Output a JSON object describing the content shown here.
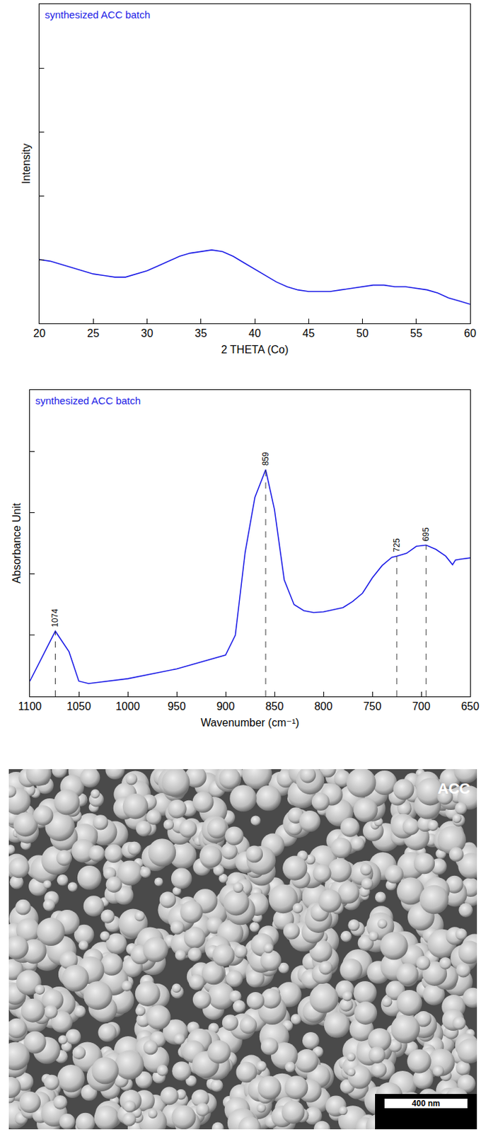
{
  "chart_data": [
    {
      "type": "line",
      "annotation": "synthesized ACC batch",
      "x_label": "2 THETA (Co)",
      "y_label": "Intensity",
      "x": [
        20,
        21,
        22,
        23,
        24,
        25,
        26,
        27,
        28,
        29,
        30,
        31,
        32,
        33,
        34,
        35,
        36,
        37,
        38,
        39,
        40,
        41,
        42,
        43,
        44,
        45,
        46,
        47,
        48,
        49,
        50,
        51,
        52,
        53,
        54,
        55,
        56,
        57,
        58,
        59,
        60
      ],
      "values": [
        20,
        19.5,
        18.5,
        17.5,
        16.5,
        15.5,
        15,
        14.5,
        14.5,
        15.5,
        16.5,
        18,
        19.5,
        21,
        22,
        22.5,
        23,
        22.5,
        21,
        19,
        17,
        15,
        13,
        11.5,
        10.5,
        10,
        10,
        10,
        10.5,
        11,
        11.5,
        12,
        12,
        11.5,
        11.5,
        11,
        10.5,
        9.5,
        8,
        7,
        6
      ],
      "color": "#1a1ae6",
      "xlim": [
        20,
        60
      ],
      "xticks": [
        20,
        25,
        30,
        35,
        40,
        45,
        50,
        55,
        60
      ],
      "ylim": [
        0,
        100
      ],
      "yticks": [
        0,
        20,
        40,
        60,
        80,
        100
      ],
      "tick_labels": "x",
      "grid": false
    },
    {
      "type": "line",
      "annotation": "synthesized ACC batch",
      "x_label": "Wavenumber (cm⁻¹)",
      "y_label": "Absorbance Unit",
      "x": [
        1100,
        1074,
        1060,
        1050,
        1040,
        1000,
        950,
        900,
        890,
        880,
        870,
        859,
        850,
        840,
        830,
        820,
        810,
        800,
        780,
        770,
        760,
        750,
        740,
        730,
        725,
        715,
        705,
        695,
        685,
        675,
        668,
        665,
        660,
        650
      ],
      "values": [
        5,
        21.3,
        14.6,
        5,
        4.2,
        5.8,
        9,
        13.5,
        20,
        47,
        65,
        74,
        61,
        38,
        30,
        28,
        27.4,
        27.6,
        29,
        31,
        33.7,
        38.7,
        42.7,
        45.4,
        45.8,
        46.7,
        49,
        49.4,
        48,
        45.8,
        43,
        44.5,
        44.8,
        45.2
      ],
      "color": "#1a1ae6",
      "peaks": [
        {
          "x": 1074,
          "y": 21.3
        },
        {
          "x": 859,
          "y": 74
        },
        {
          "x": 725,
          "y": 45.8
        },
        {
          "x": 695,
          "y": 49.4
        }
      ],
      "xlim": [
        1100,
        650
      ],
      "xticks": [
        1100,
        1050,
        1000,
        950,
        900,
        850,
        800,
        750,
        700,
        650
      ],
      "ylim": [
        0,
        100
      ],
      "yticks": [
        0,
        20,
        40,
        60,
        80,
        100
      ],
      "tick_labels": "x",
      "grid": false
    }
  ],
  "image": {
    "label": "ACC",
    "scale_bar": "400 nm"
  }
}
